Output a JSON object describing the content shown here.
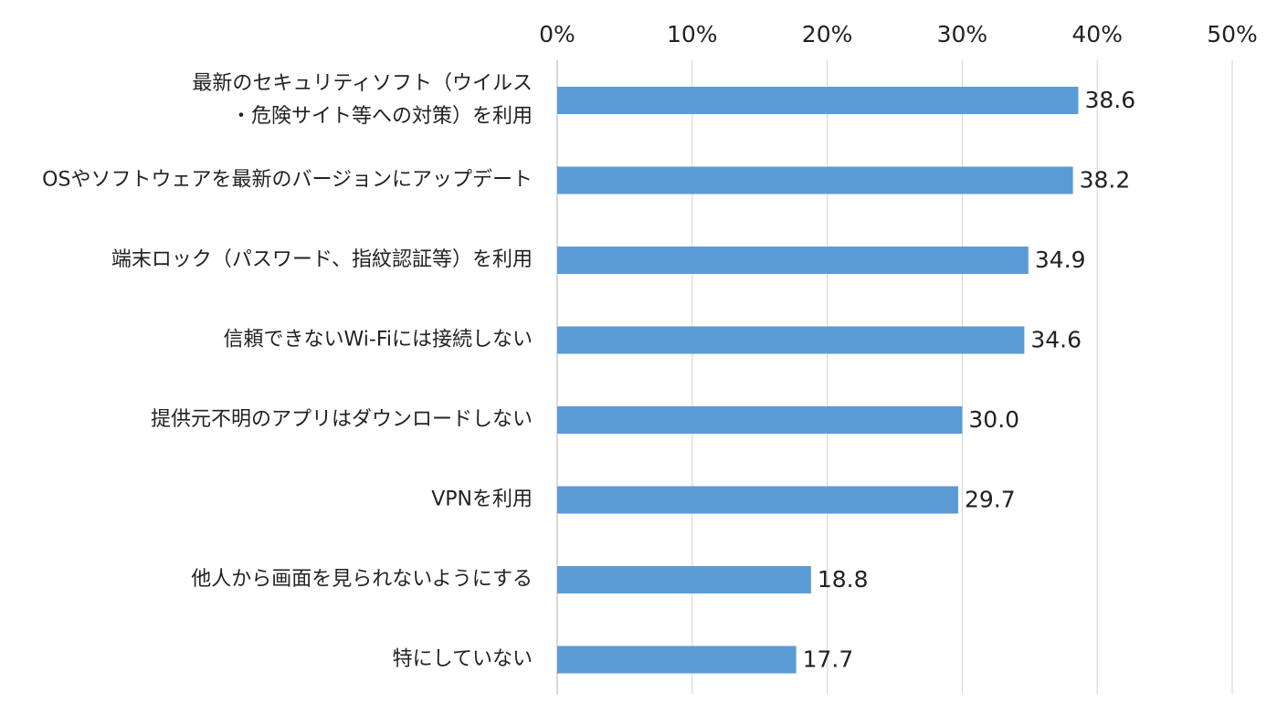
{
  "chart_data": {
    "type": "bar",
    "orientation": "horizontal",
    "title": "",
    "xlabel": "",
    "ylabel": "",
    "xlim": [
      0,
      50
    ],
    "x_tick_labels": [
      "0%",
      "10%",
      "20%",
      "30%",
      "40%",
      "50%"
    ],
    "x_tick_values": [
      0,
      10,
      20,
      30,
      40,
      50
    ],
    "x_axis_position": "top",
    "grid": true,
    "bar_color": "#5b9bd5",
    "categories": [
      [
        "最新のセキュリティソフト（ウイルス",
        "・危険サイト等への対策）を利用"
      ],
      [
        "OSやソフトウェアを最新のバージョンにアップデート"
      ],
      [
        "端末ロック（パスワード、指紋認証等）を利用"
      ],
      [
        "信頼できないWi-Fiには接続しない"
      ],
      [
        "提供元不明のアプリはダウンロードしない"
      ],
      [
        "VPNを利用"
      ],
      [
        "他人から画面を見られないようにする"
      ],
      [
        "特にしていない"
      ]
    ],
    "values": [
      38.6,
      38.2,
      34.9,
      34.6,
      30.0,
      29.7,
      18.8,
      17.7
    ],
    "value_labels": [
      "38.6",
      "38.2",
      "34.9",
      "34.6",
      "30.0",
      "29.7",
      "18.8",
      "17.7"
    ]
  }
}
